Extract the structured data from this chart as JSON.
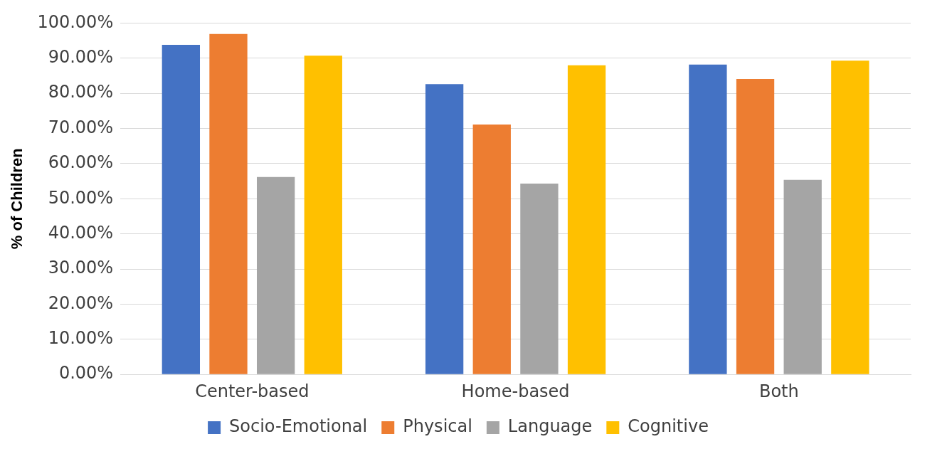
{
  "chart_data": {
    "type": "bar",
    "ylabel": "% of Children",
    "categories": [
      "Center-based",
      "Home-based",
      "Both"
    ],
    "series": [
      {
        "name": "Socio-Emotional",
        "color": "#4472c4",
        "values": [
          93.8,
          82.6,
          88.2
        ]
      },
      {
        "name": "Physical",
        "color": "#ed7d31",
        "values": [
          96.9,
          71.1,
          84.1
        ]
      },
      {
        "name": "Language",
        "color": "#a5a5a5",
        "values": [
          56.2,
          54.3,
          55.4
        ]
      },
      {
        "name": "Cognitive",
        "color": "#ffc000",
        "values": [
          90.7,
          88.0,
          89.3
        ]
      }
    ],
    "ylim": [
      0,
      100
    ],
    "yticks": [
      {
        "value": 0,
        "label": "0.00%"
      },
      {
        "value": 10,
        "label": "10.00%"
      },
      {
        "value": 20,
        "label": "20.00%"
      },
      {
        "value": 30,
        "label": "30.00%"
      },
      {
        "value": 40,
        "label": "40.00%"
      },
      {
        "value": 50,
        "label": "50.00%"
      },
      {
        "value": 60,
        "label": "60.00%"
      },
      {
        "value": 70,
        "label": "70.00%"
      },
      {
        "value": 80,
        "label": "80.00%"
      },
      {
        "value": 90,
        "label": "90.00%"
      },
      {
        "value": 100,
        "label": "100.00%"
      }
    ],
    "grid": "y",
    "legend": "bottom"
  }
}
